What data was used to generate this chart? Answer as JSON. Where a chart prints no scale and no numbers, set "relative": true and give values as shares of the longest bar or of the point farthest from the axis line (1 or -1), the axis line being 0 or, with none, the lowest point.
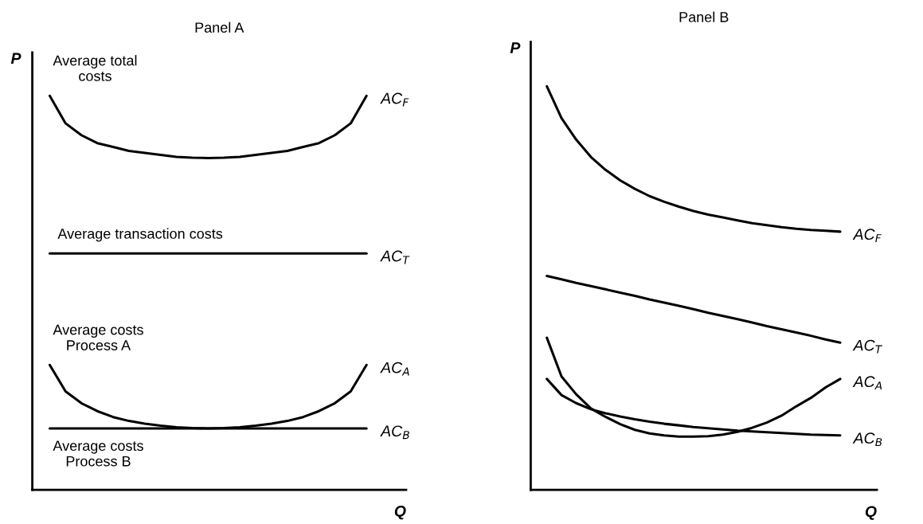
{
  "chart_data": [
    {
      "type": "line",
      "title": "Panel A",
      "xlabel": "Q",
      "ylabel": "P",
      "relative": true,
      "legend": false,
      "categories": [
        null,
        null,
        null,
        null,
        null,
        null,
        null,
        null,
        null,
        null,
        null,
        null,
        null,
        null,
        null,
        null,
        null,
        null,
        null,
        null,
        null
      ],
      "series": [
        {
          "name": "AC$_{F}$",
          "color": "#000000",
          "values": [
            1.0,
            0.93,
            0.9,
            0.88,
            0.87,
            0.86,
            0.855,
            0.85,
            0.845,
            0.843,
            0.842,
            0.843,
            0.845,
            0.85,
            0.855,
            0.86,
            0.87,
            0.88,
            0.9,
            0.93,
            1.0
          ]
        },
        {
          "name": "AC$_{T}$",
          "color": "#000000",
          "values": [
            0.6,
            0.6,
            0.6,
            0.6,
            0.6,
            0.6,
            0.6,
            0.6,
            0.6,
            0.6,
            0.6,
            0.6,
            0.6,
            0.6,
            0.6,
            0.6,
            0.6,
            0.6,
            0.6,
            0.6,
            0.6
          ]
        },
        {
          "name": "AC$_{A}$",
          "color": "#000000",
          "values": [
            0.317,
            0.25,
            0.22,
            0.2,
            0.185,
            0.175,
            0.168,
            0.163,
            0.159,
            0.157,
            0.156,
            0.157,
            0.159,
            0.163,
            0.168,
            0.175,
            0.185,
            0.2,
            0.22,
            0.25,
            0.317
          ]
        },
        {
          "name": "AC$_{B}$",
          "color": "#000000",
          "values": [
            0.156,
            0.156,
            0.156,
            0.156,
            0.156,
            0.156,
            0.156,
            0.156,
            0.156,
            0.156,
            0.156,
            0.156,
            0.156,
            0.156,
            0.156,
            0.156,
            0.156,
            0.156,
            0.156,
            0.156,
            0.156
          ]
        }
      ],
      "annotations": [
        "Average total\ncosts",
        "Average transaction costs",
        "Average costs\nProcess A",
        "Average costs\nProcess B"
      ]
    },
    {
      "type": "line",
      "title": "Panel B",
      "xlabel": "Q",
      "ylabel": "P",
      "relative": true,
      "legend": false,
      "categories": [
        null,
        null,
        null,
        null,
        null,
        null,
        null,
        null,
        null,
        null,
        null,
        null,
        null,
        null,
        null,
        null,
        null,
        null,
        null,
        null,
        null
      ],
      "series": [
        {
          "name": "AC$_{F}$",
          "color": "#000000",
          "values": [
            1.0,
            0.921,
            0.868,
            0.825,
            0.793,
            0.767,
            0.746,
            0.728,
            0.714,
            0.702,
            0.691,
            0.682,
            0.675,
            0.668,
            0.661,
            0.656,
            0.651,
            0.647,
            0.644,
            0.642,
            0.64
          ]
        },
        {
          "name": "AC$_{T}$",
          "color": "#000000",
          "values": [
            0.53,
            0.522,
            0.513,
            0.505,
            0.497,
            0.489,
            0.481,
            0.472,
            0.464,
            0.456,
            0.448,
            0.439,
            0.431,
            0.423,
            0.415,
            0.406,
            0.398,
            0.39,
            0.382,
            0.373,
            0.365
          ]
        },
        {
          "name": "AC$_{A}$",
          "color": "#000000",
          "values": [
            0.377,
            0.281,
            0.237,
            0.202,
            0.181,
            0.163,
            0.149,
            0.14,
            0.135,
            0.132,
            0.132,
            0.133,
            0.137,
            0.144,
            0.154,
            0.167,
            0.184,
            0.207,
            0.228,
            0.254,
            0.275
          ]
        },
        {
          "name": "AC$_{B}$",
          "color": "#000000",
          "values": [
            0.275,
            0.235,
            0.215,
            0.2,
            0.19,
            0.182,
            0.175,
            0.169,
            0.164,
            0.16,
            0.156,
            0.153,
            0.15,
            0.147,
            0.145,
            0.143,
            0.141,
            0.139,
            0.137,
            0.136,
            0.135
          ]
        }
      ]
    }
  ]
}
